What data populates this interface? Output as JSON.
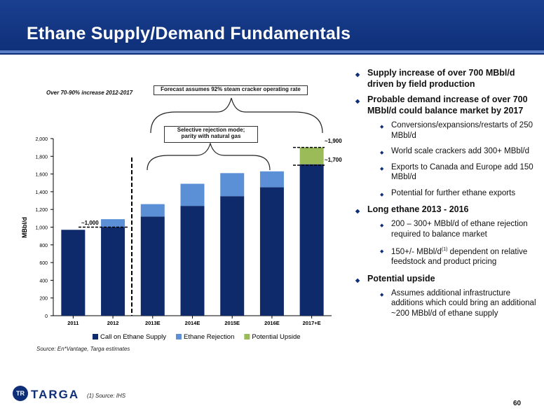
{
  "title": "Ethane Supply/Demand Fundamentals",
  "annotations": {
    "increase_note": "Over 70-90% increase 2012-2017",
    "forecast_note": "Forecast assumes 92% steam cracker operating rate",
    "rejection_note_line1": "Selective rejection mode;",
    "rejection_note_line2": "parity with natural  gas",
    "label_1000": "~1,000",
    "label_1900": "~1,900",
    "label_1700": "~1,700"
  },
  "chart_data": {
    "type": "bar",
    "stacked": true,
    "categories": [
      "2011",
      "2012",
      "2013E",
      "2014E",
      "2015E",
      "2016E",
      "2017+E"
    ],
    "series": [
      {
        "name": "Call on Ethane Supply",
        "color": "#0e2a6a",
        "values": [
          970,
          1000,
          1120,
          1240,
          1350,
          1450,
          1710
        ]
      },
      {
        "name": "Ethane Rejection",
        "color": "#5b8fd6",
        "values": [
          0,
          90,
          140,
          250,
          260,
          180,
          0
        ]
      },
      {
        "name": "Potential Upside",
        "color": "#9bbb59",
        "values": [
          0,
          0,
          0,
          0,
          0,
          0,
          190
        ]
      }
    ],
    "ylabel": "MBbl/d",
    "ylim": [
      0,
      2000
    ],
    "yticks": [
      "0",
      "200",
      "400",
      "600",
      "800",
      "1,000",
      "1,200",
      "1,400",
      "1,600",
      "1,800",
      "2,000"
    ],
    "grid": false,
    "legend_position": "bottom"
  },
  "source": "Source: En*Vantage, Targa estimates",
  "bullets": [
    {
      "level": 1,
      "text": "Supply increase of over 700 MBbl/d driven by field production"
    },
    {
      "level": 1,
      "text": "Probable demand increase of over 700 MBbl/d could balance market by 2017"
    },
    {
      "level": 2,
      "text": "Conversions/expansions/restarts of 250 MBbl/d"
    },
    {
      "level": 2,
      "text": "World scale crackers add 300+ MBbl/d"
    },
    {
      "level": 2,
      "text": "Exports to Canada and Europe add 150 MBbl/d"
    },
    {
      "level": 2,
      "text": "Potential for further ethane exports"
    },
    {
      "level": 1,
      "text": "Long ethane 2013 - 2016"
    },
    {
      "level": 2,
      "text": "200 – 300+ MBbl/d of ethane rejection required to balance market"
    },
    {
      "level": 2,
      "text": "150+/- MBbl/d",
      "sup": "(1)",
      "text_after": " dependent on relative feedstock and product pricing"
    },
    {
      "level": 1,
      "text": "Potential upside"
    },
    {
      "level": 2,
      "text": "Assumes additional infrastructure additions which could bring an additional ~200 MBbl/d of ethane supply"
    }
  ],
  "logo": {
    "mark": "TR",
    "name": "TARGA"
  },
  "footnote": "(1)    Source: IHS",
  "page_number": "60"
}
